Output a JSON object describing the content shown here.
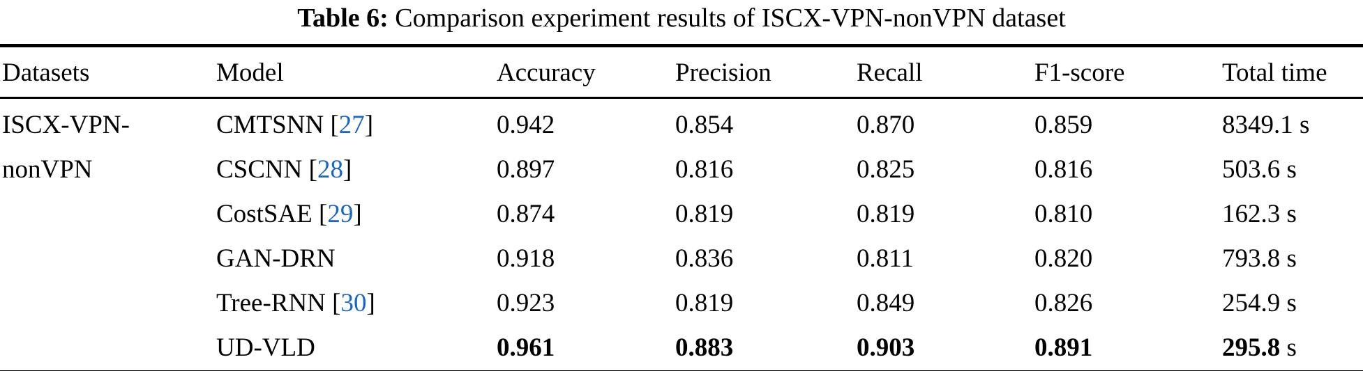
{
  "caption": {
    "label": "Table 6:",
    "text": "Comparison experiment results of ISCX-VPN-nonVPN dataset"
  },
  "colors": {
    "citation_link": "#1766c9",
    "text": "#000000",
    "background": "#ffffff",
    "rule": "#000000"
  },
  "columns": [
    "Datasets",
    "Model",
    "Accuracy",
    "Precision",
    "Recall",
    "F1-score",
    "Total time"
  ],
  "rows": [
    {
      "dataset": "ISCX-VPN-",
      "model": "CMTSNN",
      "cite_open": " [",
      "cite": "27",
      "cite_close": "]",
      "accuracy": "0.942",
      "precision": "0.854",
      "recall": "0.870",
      "f1": "0.859",
      "time": "8349.1",
      "time_unit": "s"
    },
    {
      "dataset": "nonVPN",
      "model": "CSCNN",
      "cite_open": " [",
      "cite": "28",
      "cite_close": "]",
      "accuracy": "0.897",
      "precision": "0.816",
      "recall": "0.825",
      "f1": "0.816",
      "time": "503.6",
      "time_unit": "s"
    },
    {
      "dataset": "",
      "model": "CostSAE",
      "cite_open": " [",
      "cite": "29",
      "cite_close": "]",
      "accuracy": "0.874",
      "precision": "0.819",
      "recall": "0.819",
      "f1": "0.810",
      "time": "162.3",
      "time_unit": "s"
    },
    {
      "dataset": "",
      "model": "GAN-DRN",
      "cite_open": "",
      "cite": "",
      "cite_close": "",
      "accuracy": "0.918",
      "precision": "0.836",
      "recall": "0.811",
      "f1": "0.820",
      "time": "793.8",
      "time_unit": "s"
    },
    {
      "dataset": "",
      "model": "Tree-RNN",
      "cite_open": " [",
      "cite": "30",
      "cite_close": "]",
      "accuracy": "0.923",
      "precision": "0.819",
      "recall": "0.849",
      "f1": "0.826",
      "time": "254.9",
      "time_unit": "s"
    },
    {
      "dataset": "",
      "model": "UD-VLD",
      "cite_open": "",
      "cite": "",
      "cite_close": "",
      "accuracy": "0.961",
      "precision": "0.883",
      "recall": "0.903",
      "f1": "0.891",
      "time": "295.8",
      "time_unit": "s"
    }
  ]
}
